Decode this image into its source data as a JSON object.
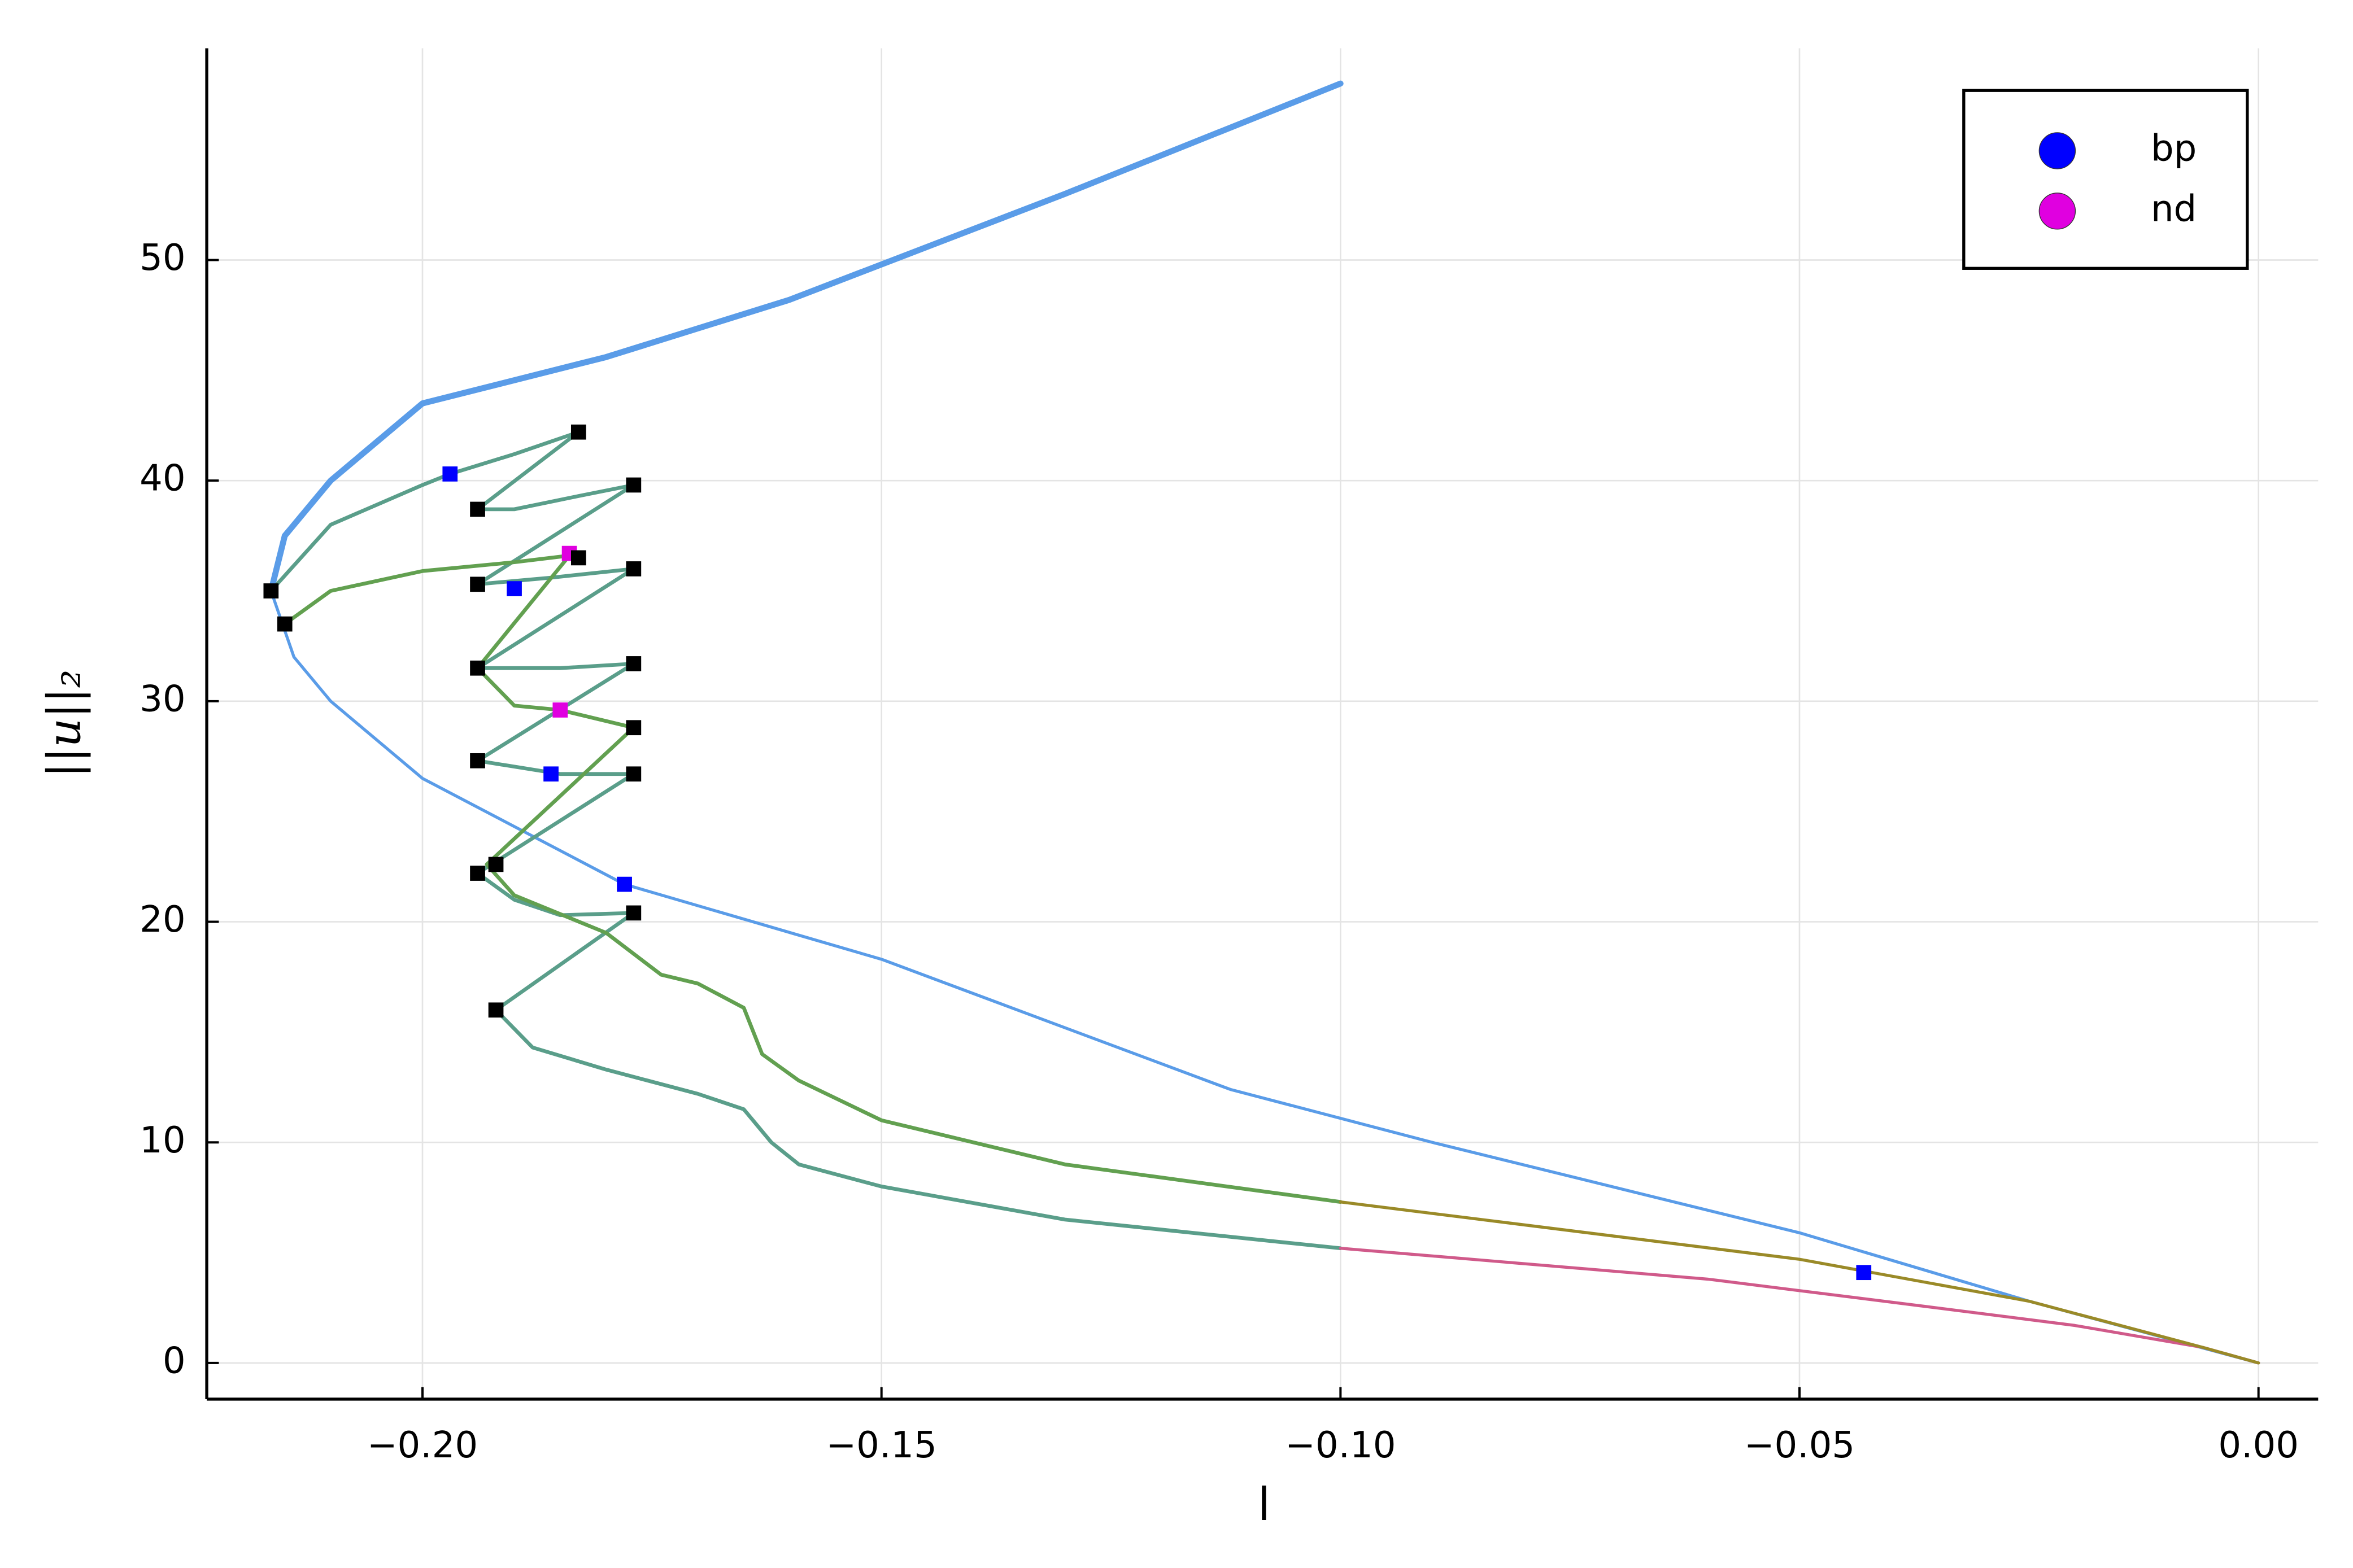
{
  "chart_data": {
    "type": "line",
    "xlabel": "l",
    "ylabel": "||u||₂",
    "xlim": [
      -0.2235,
      0.0065
    ],
    "ylim": [
      -1.64,
      59.6
    ],
    "xticks": [
      {
        "value": -0.2,
        "label": "−0.20"
      },
      {
        "value": -0.15,
        "label": "−0.15"
      },
      {
        "value": -0.1,
        "label": "−0.10"
      },
      {
        "value": -0.05,
        "label": "−0.05"
      },
      {
        "value": 0,
        "label": "0.00"
      }
    ],
    "yticks": [
      0,
      10,
      20,
      30,
      40,
      50
    ],
    "grid": true,
    "legend": "upper right",
    "series": [
      {
        "color": "#5a9ce8",
        "width": 4,
        "x": [
          -0.1,
          -0.13,
          -0.16,
          -0.18,
          -0.2,
          -0.21,
          -0.215,
          -0.2165
        ],
        "values": [
          58,
          53,
          48.2,
          45.6,
          43.5,
          40,
          37.5,
          35
        ]
      },
      {
        "color": "#5a9ce8",
        "width": 2,
        "x": [
          -0.2165,
          -0.214,
          -0.21,
          -0.2,
          -0.178,
          -0.15,
          -0.112,
          -0.09,
          -0.05,
          -0.025,
          0
        ],
        "values": [
          35,
          32,
          30,
          26.5,
          21.7,
          18.3,
          12.4,
          10,
          5.9,
          2.8,
          0
        ]
      },
      {
        "color": "#5a9e8a",
        "width": 2.5,
        "x": [
          -0.2165,
          -0.21,
          -0.2,
          -0.197,
          -0.19,
          -0.183,
          -0.194,
          -0.19,
          -0.183,
          -0.177,
          -0.194,
          -0.186,
          -0.177,
          -0.194,
          -0.185,
          -0.177,
          -0.194,
          -0.185,
          -0.177,
          -0.194,
          -0.19,
          -0.185,
          -0.177,
          -0.192,
          -0.188,
          -0.18,
          -0.17,
          -0.165,
          -0.162,
          -0.159,
          -0.15,
          -0.13,
          -0.1
        ],
        "values": [
          35,
          38,
          39.8,
          40.3,
          41.2,
          42.2,
          38.7,
          38.7,
          39.3,
          39.8,
          35.3,
          35.6,
          36,
          31.5,
          31.5,
          31.7,
          27.3,
          26.7,
          26.7,
          22.2,
          21,
          20.3,
          20.4,
          16,
          14.3,
          13.3,
          12.2,
          11.5,
          10,
          9,
          8,
          6.5,
          5.2
        ]
      },
      {
        "color": "#d05a8a",
        "width": 2,
        "x": [
          -0.1,
          -0.06,
          -0.037,
          -0.02,
          -0.006,
          0
        ],
        "values": [
          5.2,
          3.8,
          2.6,
          1.7,
          0.7,
          0
        ]
      },
      {
        "color": "#62a050",
        "width": 2.5,
        "x": [
          -0.215,
          -0.21,
          -0.2,
          -0.19,
          -0.184,
          -0.194,
          -0.19,
          -0.185,
          -0.177,
          -0.193,
          -0.19,
          -0.18,
          -0.174,
          -0.17,
          -0.165,
          -0.163,
          -0.159,
          -0.15,
          -0.13,
          -0.1
        ],
        "values": [
          33.5,
          35,
          35.9,
          36.3,
          36.6,
          31.5,
          29.8,
          29.6,
          28.8,
          22.6,
          21.2,
          19.5,
          17.6,
          17.2,
          16.1,
          14,
          12.8,
          11,
          9,
          7.3
        ]
      },
      {
        "color": "#9a8a28",
        "width": 2,
        "x": [
          -0.1,
          -0.05,
          -0.025,
          -0.006,
          0
        ],
        "values": [
          7.3,
          4.7,
          2.8,
          0.7,
          0
        ]
      }
    ],
    "points": [
      {
        "name": "bp",
        "color": "#0000ff",
        "x": [
          -0.197,
          -0.19,
          -0.186,
          -0.178,
          -0.043
        ],
        "values": [
          40.3,
          35.1,
          26.7,
          21.7,
          4.1
        ]
      },
      {
        "name": "nd",
        "color": "#e000e0",
        "x": [
          -0.184,
          -0.185
        ],
        "values": [
          36.7,
          29.6
        ]
      },
      {
        "color": "#000000",
        "x": [
          -0.2165,
          -0.215,
          -0.183,
          -0.194,
          -0.177,
          -0.183,
          -0.194,
          -0.177,
          -0.194,
          -0.177,
          -0.177,
          -0.194,
          -0.177,
          -0.192,
          -0.194,
          -0.177,
          -0.192
        ],
        "values": [
          35,
          33.5,
          42.2,
          38.7,
          39.8,
          36.5,
          35.3,
          36,
          31.5,
          31.7,
          28.8,
          27.3,
          26.7,
          22.6,
          22.2,
          20.4,
          16
        ]
      }
    ]
  }
}
